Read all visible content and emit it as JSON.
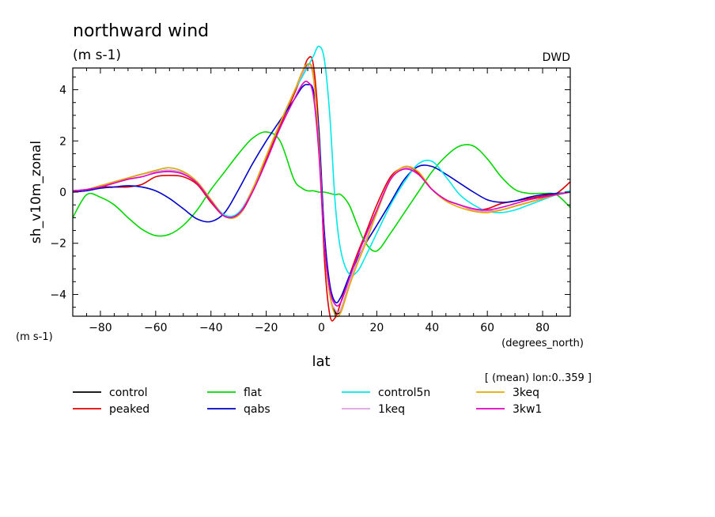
{
  "chart_data": {
    "type": "line",
    "title": "northward wind",
    "subtitle": "(m s-1)",
    "source": "DWD",
    "xlabel": "lat",
    "x_units": "(degrees_north)",
    "ylabel": "sh_v10m_zonal",
    "y_units": "(m s-1)",
    "annotation": "[ (mean) lon:0..359 ]",
    "xlim": [
      -90,
      90
    ],
    "ylim": [
      -4.85,
      4.85
    ],
    "x_ticks": [
      -80,
      -60,
      -40,
      -20,
      0,
      20,
      40,
      60,
      80
    ],
    "y_ticks": [
      -4,
      -2,
      0,
      2,
      4
    ],
    "grid": false,
    "legend_position": "bottom",
    "x": [
      -90,
      -85,
      -80,
      -75,
      -70,
      -65,
      -60,
      -55,
      -50,
      -45,
      -40,
      -35,
      -30,
      -25,
      -20,
      -15,
      -10,
      -7,
      -5,
      -3,
      -1,
      1,
      3,
      5,
      7,
      10,
      13,
      16,
      20,
      25,
      30,
      35,
      40,
      45,
      50,
      55,
      60,
      65,
      70,
      75,
      80,
      85,
      90
    ],
    "series": [
      {
        "name": "control",
        "color": "#000000",
        "values": [
          0.05,
          0.1,
          0.25,
          0.4,
          0.55,
          0.7,
          0.8,
          0.85,
          0.75,
          0.4,
          -0.3,
          -0.95,
          -0.85,
          0.1,
          1.4,
          2.7,
          3.9,
          4.6,
          5.0,
          4.6,
          2.0,
          -2.0,
          -4.0,
          -4.7,
          -4.6,
          -3.6,
          -2.7,
          -1.9,
          -0.8,
          0.5,
          0.95,
          0.7,
          0.1,
          -0.3,
          -0.5,
          -0.7,
          -0.75,
          -0.7,
          -0.55,
          -0.4,
          -0.25,
          -0.1,
          0.0
        ]
      },
      {
        "name": "peaked",
        "color": "#e00000",
        "values": [
          0.05,
          0.1,
          0.2,
          0.2,
          0.2,
          0.3,
          0.6,
          0.65,
          0.6,
          0.3,
          -0.4,
          -0.95,
          -0.9,
          0.0,
          1.3,
          2.6,
          3.8,
          4.6,
          5.2,
          5.0,
          2.5,
          -2.5,
          -4.8,
          -4.9,
          -4.3,
          -3.3,
          -2.4,
          -1.6,
          -0.5,
          0.6,
          0.95,
          0.75,
          0.1,
          -0.3,
          -0.5,
          -0.7,
          -0.65,
          -0.45,
          -0.35,
          -0.25,
          -0.15,
          -0.05,
          0.4
        ]
      },
      {
        "name": "flat",
        "color": "#00d800",
        "values": [
          -1.0,
          -0.1,
          -0.2,
          -0.5,
          -1.0,
          -1.45,
          -1.7,
          -1.65,
          -1.3,
          -0.7,
          0.1,
          0.8,
          1.5,
          2.1,
          2.35,
          2.0,
          0.5,
          0.15,
          0.05,
          0.05,
          0.0,
          0.0,
          -0.05,
          -0.1,
          -0.1,
          -0.5,
          -1.3,
          -2.0,
          -2.3,
          -1.6,
          -0.8,
          0.0,
          0.8,
          1.4,
          1.8,
          1.8,
          1.3,
          0.6,
          0.1,
          -0.05,
          -0.05,
          -0.1,
          -0.6
        ]
      },
      {
        "name": "qabs",
        "color": "#0000cc",
        "values": [
          0.0,
          0.05,
          0.15,
          0.2,
          0.25,
          0.2,
          0.05,
          -0.25,
          -0.65,
          -1.05,
          -1.15,
          -0.8,
          0.1,
          1.1,
          2.0,
          2.8,
          3.6,
          4.1,
          4.2,
          4.0,
          2.5,
          -1.5,
          -3.6,
          -4.3,
          -4.1,
          -3.3,
          -2.6,
          -2.0,
          -1.3,
          -0.4,
          0.5,
          1.0,
          1.0,
          0.7,
          0.35,
          0.0,
          -0.3,
          -0.4,
          -0.35,
          -0.2,
          -0.1,
          -0.05,
          0.0
        ]
      },
      {
        "name": "control5n",
        "color": "#00e8e8",
        "values": [
          0.05,
          0.1,
          0.25,
          0.4,
          0.55,
          0.7,
          0.85,
          0.95,
          0.8,
          0.4,
          -0.3,
          -0.9,
          -0.8,
          0.1,
          1.4,
          2.7,
          3.9,
          4.5,
          4.9,
          5.3,
          5.7,
          5.2,
          3.0,
          -0.5,
          -2.3,
          -3.2,
          -3.1,
          -2.5,
          -1.6,
          -0.5,
          0.4,
          1.1,
          1.2,
          0.6,
          -0.1,
          -0.5,
          -0.75,
          -0.8,
          -0.7,
          -0.5,
          -0.3,
          -0.1,
          0.05
        ]
      },
      {
        "name": "1keq",
        "color": "#e0a0e0",
        "values": [
          0.05,
          0.1,
          0.25,
          0.4,
          0.55,
          0.7,
          0.8,
          0.85,
          0.75,
          0.4,
          -0.3,
          -0.95,
          -0.85,
          0.1,
          1.4,
          2.7,
          3.9,
          4.6,
          4.9,
          4.5,
          1.9,
          -2.0,
          -4.0,
          -4.6,
          -4.6,
          -3.6,
          -2.7,
          -1.9,
          -0.8,
          0.5,
          0.95,
          0.7,
          0.1,
          -0.3,
          -0.5,
          -0.7,
          -0.75,
          -0.7,
          -0.55,
          -0.4,
          -0.25,
          -0.1,
          0.0
        ]
      },
      {
        "name": "3keq",
        "color": "#e8a800",
        "values": [
          0.05,
          0.1,
          0.25,
          0.4,
          0.55,
          0.7,
          0.85,
          0.95,
          0.8,
          0.4,
          -0.3,
          -0.95,
          -0.9,
          0.1,
          1.4,
          2.7,
          3.9,
          4.7,
          5.0,
          4.6,
          2.0,
          -2.0,
          -4.0,
          -4.8,
          -4.7,
          -3.7,
          -2.8,
          -2.0,
          -0.8,
          0.5,
          1.0,
          0.8,
          0.1,
          -0.35,
          -0.6,
          -0.75,
          -0.8,
          -0.7,
          -0.55,
          -0.4,
          -0.25,
          -0.1,
          0.0
        ]
      },
      {
        "name": "3kw1",
        "color": "#e000c0",
        "values": [
          0.05,
          0.1,
          0.2,
          0.35,
          0.5,
          0.6,
          0.75,
          0.8,
          0.7,
          0.35,
          -0.35,
          -0.95,
          -0.85,
          0.0,
          1.2,
          2.5,
          3.6,
          4.2,
          4.3,
          3.8,
          1.6,
          -2.0,
          -3.8,
          -4.4,
          -4.3,
          -3.4,
          -2.5,
          -1.7,
          -0.7,
          0.5,
          0.9,
          0.7,
          0.1,
          -0.3,
          -0.5,
          -0.65,
          -0.7,
          -0.6,
          -0.45,
          -0.3,
          -0.2,
          -0.1,
          0.0
        ]
      }
    ]
  }
}
